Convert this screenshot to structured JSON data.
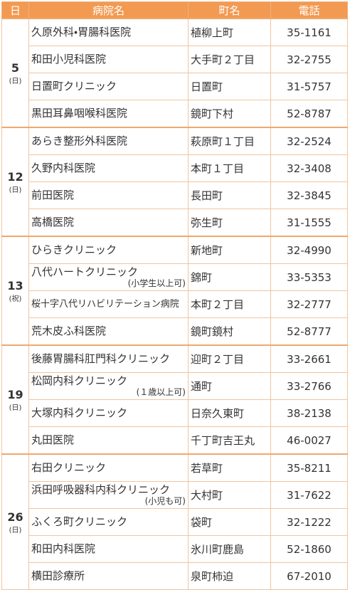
{
  "header": {
    "date": "日",
    "name": "病院名",
    "town": "町名",
    "phone": "電話"
  },
  "groups": [
    {
      "date": "5",
      "day": "(日)",
      "rows": [
        {
          "name": "久原外科・胃腸科医院",
          "town": "植柳上町",
          "phone": "35-1161"
        },
        {
          "name": "和田小児科医院",
          "town": "大手町２丁目",
          "phone": "32-2755"
        },
        {
          "name": "日置町クリニック",
          "town": "日置町",
          "phone": "31-5757"
        },
        {
          "name": "黒田耳鼻咽喉科医院",
          "town": "鏡町下村",
          "phone": "52-8787"
        }
      ]
    },
    {
      "date": "12",
      "day": "(日)",
      "rows": [
        {
          "name": "あらき整形外科医院",
          "town": "萩原町１丁目",
          "phone": "32-2524"
        },
        {
          "name": "久野内科医院",
          "town": "本町１丁目",
          "phone": "32-3408"
        },
        {
          "name": "前田医院",
          "town": "長田町",
          "phone": "32-3845"
        },
        {
          "name": "高橋医院",
          "town": "弥生町",
          "phone": "31-1555"
        }
      ]
    },
    {
      "date": "13",
      "day": "(祝)",
      "rows": [
        {
          "name": "ひらきクリニック",
          "town": "新地町",
          "phone": "32-4990"
        },
        {
          "name": "八代ハートクリニック",
          "note": "(小学生以上可)",
          "town": "錦町",
          "phone": "33-5353"
        },
        {
          "name": "桜十字八代リハビリテーション病院",
          "town": "本町２丁目",
          "phone": "32-2777"
        },
        {
          "name": "荒木皮ふ科医院",
          "town": "鏡町鏡村",
          "phone": "52-8777"
        }
      ]
    },
    {
      "date": "19",
      "day": "(日)",
      "rows": [
        {
          "name": "後藤胃腸科肛門科クリニック",
          "town": "迎町２丁目",
          "phone": "33-2661"
        },
        {
          "name": "松岡内科クリニック",
          "note": "(１歳以上可)",
          "town": "通町",
          "phone": "33-2766"
        },
        {
          "name": "大塚内科クリニック",
          "town": "日奈久東町",
          "phone": "38-2138"
        },
        {
          "name": "丸田医院",
          "town": "千丁町吉王丸",
          "phone": "46-0027"
        }
      ]
    },
    {
      "date": "26",
      "day": "(日)",
      "rows": [
        {
          "name": "右田クリニック",
          "town": "若草町",
          "phone": "35-8211"
        },
        {
          "name": "浜田呼吸器科内科クリニック",
          "note": "(小児も可)",
          "town": "大村町",
          "phone": "31-7622"
        },
        {
          "name": "ふくろ町クリニック",
          "town": "袋町",
          "phone": "32-1222"
        },
        {
          "name": "和田内科医院",
          "town": "氷川町鹿島",
          "phone": "52-1860"
        },
        {
          "name": "横田診療所",
          "town": "泉町柿迫",
          "phone": "67-2010"
        }
      ]
    }
  ]
}
